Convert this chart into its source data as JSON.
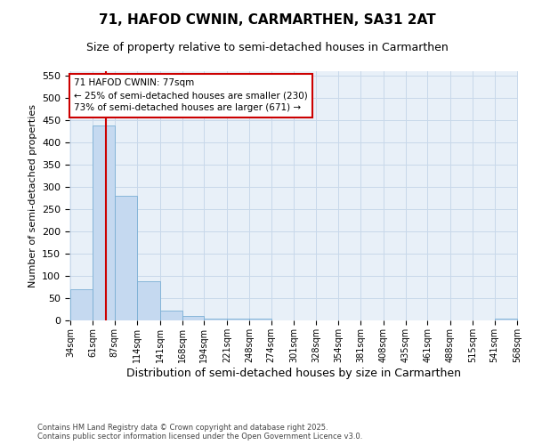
{
  "title": "71, HAFOD CWNIN, CARMARTHEN, SA31 2AT",
  "subtitle": "Size of property relative to semi-detached houses in Carmarthen",
  "xlabel": "Distribution of semi-detached houses by size in Carmarthen",
  "ylabel": "Number of semi-detached properties",
  "bar_color": "#c5d9f0",
  "bar_edge_color": "#7aafd4",
  "grid_color": "#c8d8ea",
  "background_color": "#e8f0f8",
  "vline_color": "#cc0000",
  "vline_x": 77,
  "annotation_text": "71 HAFOD CWNIN: 77sqm\n← 25% of semi-detached houses are smaller (230)\n73% of semi-detached houses are larger (671) →",
  "annotation_box_facecolor": "#ffffff",
  "annotation_box_edge": "#cc0000",
  "footer": "Contains HM Land Registry data © Crown copyright and database right 2025.\nContains public sector information licensed under the Open Government Licence v3.0.",
  "bin_edges": [
    34,
    61,
    87,
    114,
    141,
    168,
    194,
    221,
    248,
    274,
    301,
    328,
    354,
    381,
    408,
    435,
    461,
    488,
    515,
    541,
    568
  ],
  "bar_heights": [
    70,
    438,
    280,
    88,
    22,
    10,
    5,
    5,
    5,
    0,
    0,
    0,
    0,
    0,
    0,
    0,
    0,
    0,
    0,
    5
  ],
  "ylim": [
    0,
    560
  ],
  "yticks": [
    0,
    50,
    100,
    150,
    200,
    250,
    300,
    350,
    400,
    450,
    500,
    550
  ],
  "title_fontsize": 11,
  "subtitle_fontsize": 9,
  "ylabel_fontsize": 8,
  "xlabel_fontsize": 9,
  "tick_fontsize": 7,
  "footer_fontsize": 6
}
